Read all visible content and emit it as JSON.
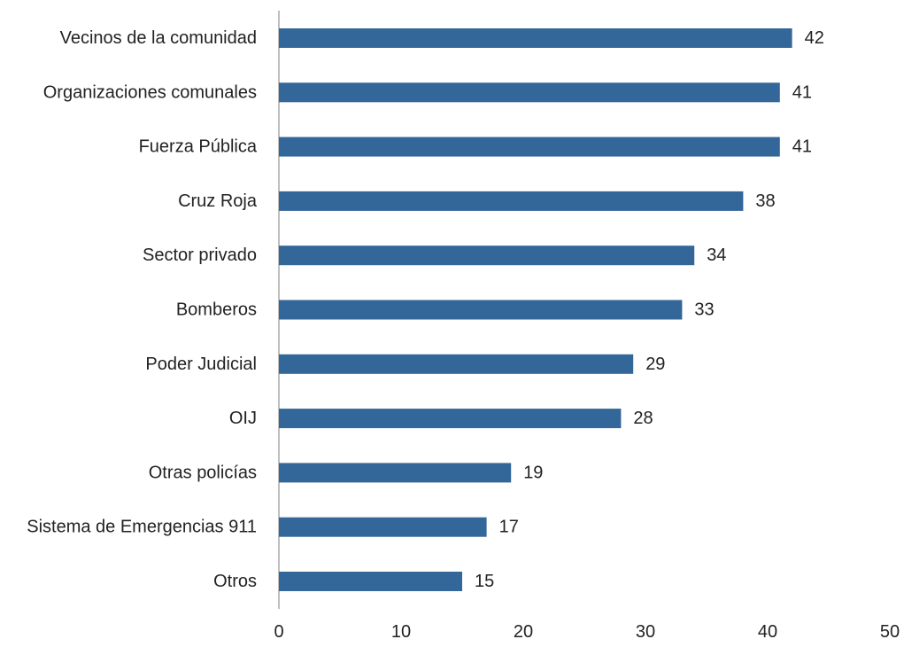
{
  "chart_data": {
    "type": "bar",
    "orientation": "horizontal",
    "categories": [
      "Vecinos de la comunidad",
      "Organizaciones comunales",
      "Fuerza Pública",
      "Cruz Roja",
      "Sector privado",
      "Bomberos",
      "Poder Judicial",
      "OIJ",
      "Otras policías",
      "Sistema de Emergencias 911",
      "Otros"
    ],
    "values": [
      42,
      41,
      41,
      38,
      34,
      33,
      29,
      28,
      19,
      17,
      15
    ],
    "value_labels": [
      "42",
      "41",
      "41",
      "38",
      "34",
      "33",
      "29",
      "28",
      "19",
      "17",
      "15"
    ],
    "xlim": [
      0,
      50
    ],
    "x_ticks": [
      "0",
      "10",
      "20",
      "30",
      "40",
      "50"
    ],
    "title": "",
    "xlabel": "",
    "ylabel": "",
    "grid": false,
    "legend": "none",
    "bar_color": "#336699",
    "axis_color": "#bfbfbf"
  }
}
